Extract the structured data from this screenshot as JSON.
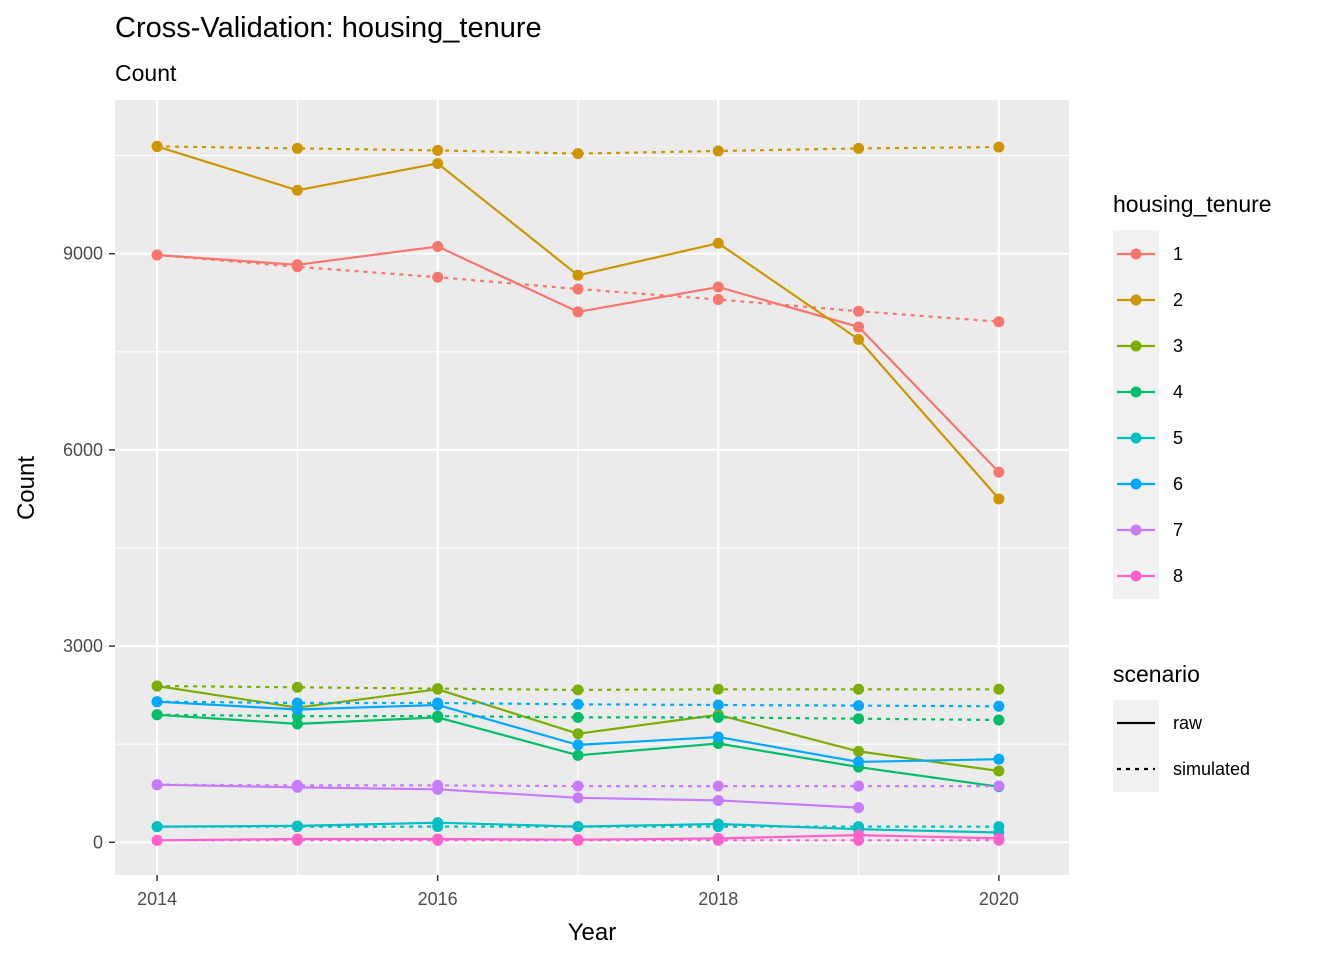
{
  "chart_data": {
    "type": "line",
    "title": "Cross-Validation: housing_tenure",
    "subtitle": "Count",
    "xlabel": "Year",
    "ylabel": "Count",
    "xlim": [
      2013.7,
      2020.5
    ],
    "ylim": [
      -500,
      11350
    ],
    "x_ticks": [
      2014,
      2016,
      2018,
      2020
    ],
    "y_ticks": [
      0,
      3000,
      6000,
      9000
    ],
    "grid": true,
    "legend_placement": "right",
    "color_legend": {
      "title": "housing_tenure",
      "entries": [
        {
          "label": "1",
          "color": "#F8766D"
        },
        {
          "label": "2",
          "color": "#CD9600"
        },
        {
          "label": "3",
          "color": "#7CAE00"
        },
        {
          "label": "4",
          "color": "#00BE67"
        },
        {
          "label": "5",
          "color": "#00BFC4"
        },
        {
          "label": "6",
          "color": "#00A9FF"
        },
        {
          "label": "7",
          "color": "#C77CFF"
        },
        {
          "label": "8",
          "color": "#FF61CC"
        }
      ]
    },
    "linetype_legend": {
      "title": "scenario",
      "entries": [
        {
          "label": "raw",
          "dash": "solid"
        },
        {
          "label": "simulated",
          "dash": "dotted"
        }
      ]
    },
    "x": [
      2014,
      2015,
      2016,
      2017,
      2018,
      2019,
      2020
    ],
    "series": [
      {
        "group": "1",
        "scenario": "raw",
        "values": [
          8980,
          8830,
          9110,
          8110,
          8490,
          7880,
          5660
        ]
      },
      {
        "group": "1",
        "scenario": "simulated",
        "values": [
          8980,
          8800,
          8640,
          8460,
          8300,
          8120,
          7960
        ]
      },
      {
        "group": "2",
        "scenario": "raw",
        "values": [
          10640,
          9970,
          10380,
          8670,
          9160,
          7690,
          5250
        ]
      },
      {
        "group": "2",
        "scenario": "simulated",
        "values": [
          10640,
          10610,
          10580,
          10530,
          10570,
          10610,
          10630
        ]
      },
      {
        "group": "3",
        "scenario": "raw",
        "values": [
          2390,
          2060,
          2340,
          1660,
          1950,
          1390,
          1090
        ]
      },
      {
        "group": "3",
        "scenario": "simulated",
        "values": [
          2390,
          2370,
          2350,
          2330,
          2340,
          2340,
          2340
        ]
      },
      {
        "group": "4",
        "scenario": "raw",
        "values": [
          1950,
          1810,
          1910,
          1330,
          1510,
          1150,
          850
        ]
      },
      {
        "group": "4",
        "scenario": "simulated",
        "values": [
          1950,
          1930,
          1930,
          1910,
          1910,
          1890,
          1870
        ]
      },
      {
        "group": "5",
        "scenario": "raw",
        "values": [
          240,
          250,
          300,
          240,
          280,
          200,
          150
        ]
      },
      {
        "group": "5",
        "scenario": "simulated",
        "values": [
          240,
          240,
          240,
          240,
          240,
          240,
          240
        ]
      },
      {
        "group": "6",
        "scenario": "raw",
        "values": [
          2150,
          2030,
          2100,
          1490,
          1610,
          1230,
          1270
        ]
      },
      {
        "group": "6",
        "scenario": "simulated",
        "values": [
          2150,
          2130,
          2130,
          2110,
          2100,
          2090,
          2080
        ]
      },
      {
        "group": "7",
        "scenario": "raw",
        "values": [
          880,
          840,
          810,
          680,
          640,
          530,
          null
        ]
      },
      {
        "group": "7",
        "scenario": "simulated",
        "values": [
          880,
          870,
          870,
          860,
          860,
          860,
          860
        ]
      },
      {
        "group": "8",
        "scenario": "raw",
        "values": [
          30,
          50,
          50,
          40,
          60,
          110,
          60
        ]
      },
      {
        "group": "8",
        "scenario": "simulated",
        "values": [
          30,
          30,
          30,
          30,
          30,
          30,
          30
        ]
      }
    ]
  }
}
